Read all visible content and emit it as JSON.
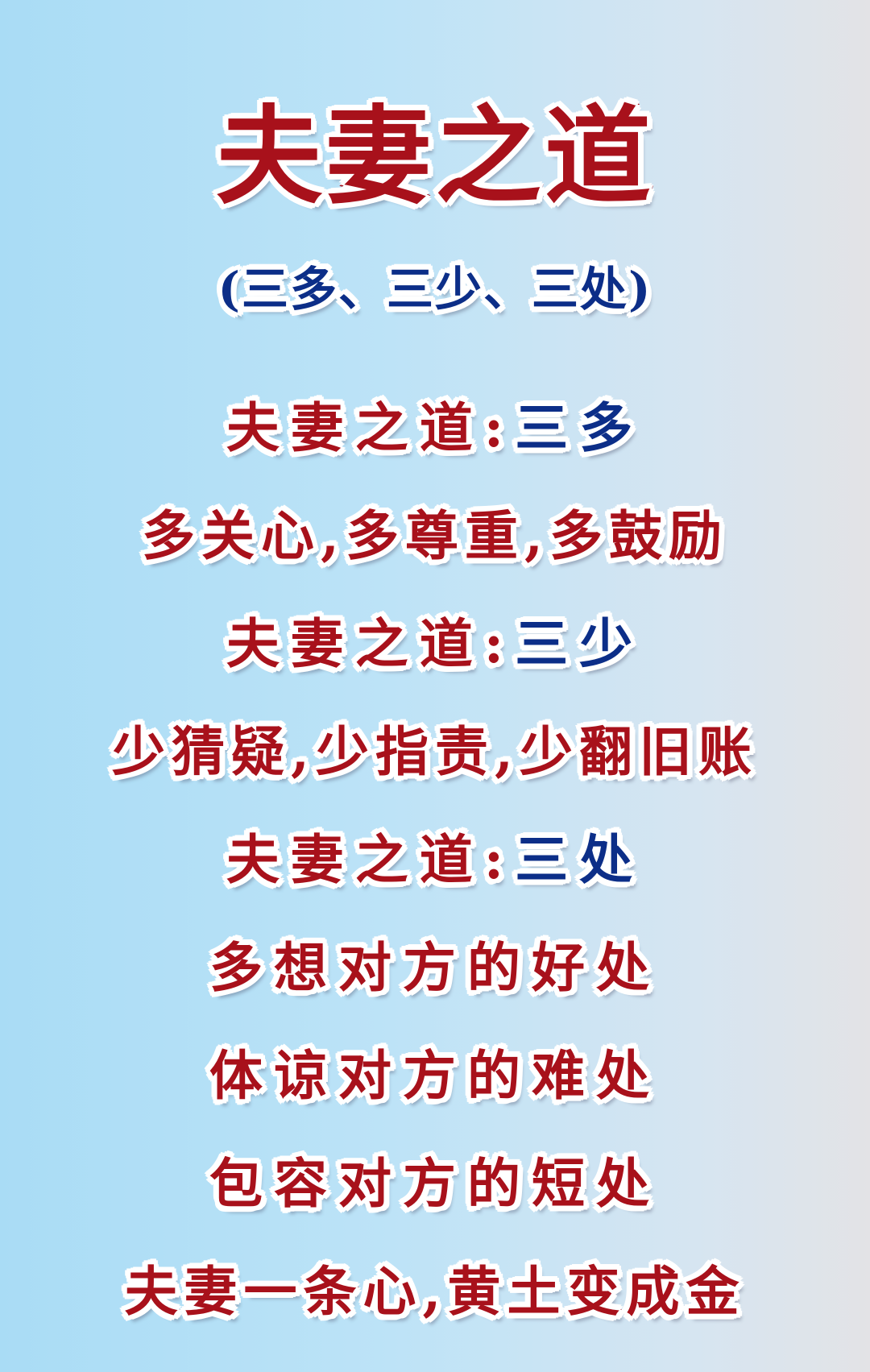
{
  "title": "夫妻之道",
  "subtitle": "(三多、三少、三处)",
  "sections": [
    {
      "heading_prefix": "夫妻之道:",
      "heading_value": "三多"
    },
    {
      "text": "多关心,多尊重,多鼓励"
    },
    {
      "heading_prefix": "夫妻之道:",
      "heading_value": "三少"
    },
    {
      "text": "少猜疑,少指责,少翻旧账"
    },
    {
      "heading_prefix": "夫妻之道:",
      "heading_value": "三处"
    },
    {
      "text": "多想对方的好处"
    },
    {
      "text": "体谅对方的难处"
    },
    {
      "text": "包容对方的短处"
    },
    {
      "text": "夫妻一条心,黄土变成金"
    }
  ],
  "colors": {
    "red_text": "#a8111b",
    "blue_text": "#0c2e88",
    "outline": "#ffffff",
    "background_left": "#a9dcf5",
    "background_right": "#e3e3e6"
  }
}
